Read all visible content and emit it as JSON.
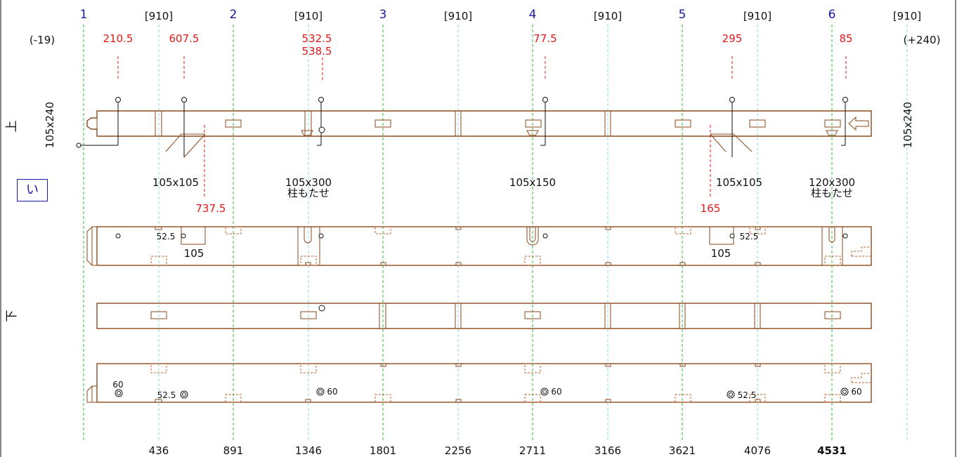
{
  "grid_numbers": [
    "1",
    "2",
    "3",
    "4",
    "5",
    "6"
  ],
  "span_labels": [
    "[910]",
    "[910]",
    "[910]",
    "[910]",
    "[910]",
    "[910]"
  ],
  "offsets": {
    "left": "(-19)",
    "right": "(+240)"
  },
  "top_red_dims": [
    "210.5",
    "607.5",
    "532.5",
    "538.5",
    "77.5",
    "295",
    "85"
  ],
  "mid_red_dims": [
    "737.5",
    "165"
  ],
  "section_left": "105x240",
  "section_right": "105x240",
  "side_labels": {
    "top": "上",
    "bottom": "下",
    "row": "い"
  },
  "joint_labels": [
    {
      "size": "105x105",
      "note": ""
    },
    {
      "size": "105x300",
      "note": "柱もたせ"
    },
    {
      "size": "105x150",
      "note": ""
    },
    {
      "size": "105x105",
      "note": ""
    },
    {
      "size": "120x300",
      "note": "柱もたせ"
    }
  ],
  "row2_labels": [
    "52.5",
    "105",
    "52.5",
    "105"
  ],
  "row4_labels": [
    "60",
    "52.5",
    "60",
    "60",
    "52.5",
    "60"
  ],
  "bottom_dims": [
    "436",
    "891",
    "1346",
    "1801",
    "2256",
    "2711",
    "3166",
    "3621",
    "4076",
    "4531"
  ],
  "colors": {
    "beam": "#8b4a1c",
    "grid_green": "#2dbb3a",
    "grid_cyan": "#8fd8dc",
    "dim_red": "#e01818",
    "grid_number_blue": "#1a1aa6"
  }
}
